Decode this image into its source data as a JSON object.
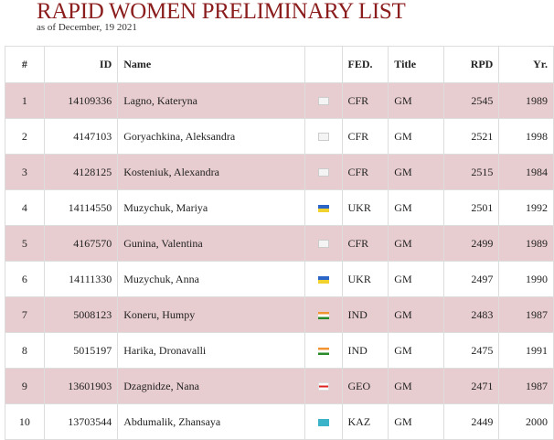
{
  "header": {
    "title": "RAPID WOMEN PRELIMINARY LIST",
    "subtitle": "as of December, 19 2021"
  },
  "table": {
    "columns": [
      "#",
      "ID",
      "Name",
      "FED.",
      "Title",
      "RPD",
      "Yr."
    ],
    "rows": [
      [
        1,
        14109336,
        "Lagno, Kateryna",
        "CFR",
        "GM",
        2545,
        1989
      ],
      [
        2,
        4147103,
        "Goryachkina, Aleksandra",
        "CFR",
        "GM",
        2521,
        1998
      ],
      [
        3,
        4128125,
        "Kosteniuk, Alexandra",
        "CFR",
        "GM",
        2515,
        1984
      ],
      [
        4,
        14114550,
        "Muzychuk, Mariya",
        "UKR",
        "GM",
        2501,
        1992
      ],
      [
        5,
        4167570,
        "Gunina, Valentina",
        "CFR",
        "GM",
        2499,
        1989
      ],
      [
        6,
        14111330,
        "Muzychuk, Anna",
        "UKR",
        "GM",
        2497,
        1990
      ],
      [
        7,
        5008123,
        "Koneru, Humpy",
        "IND",
        "GM",
        2483,
        1987
      ],
      [
        8,
        5015197,
        "Harika, Dronavalli",
        "IND",
        "GM",
        2475,
        1991
      ],
      [
        9,
        13601903,
        "Dzagnidze, Nana",
        "GEO",
        "GM",
        2471,
        1987
      ],
      [
        10,
        13703544,
        "Abdumalik, Zhansaya",
        "KAZ",
        "GM",
        2449,
        2000
      ]
    ]
  }
}
